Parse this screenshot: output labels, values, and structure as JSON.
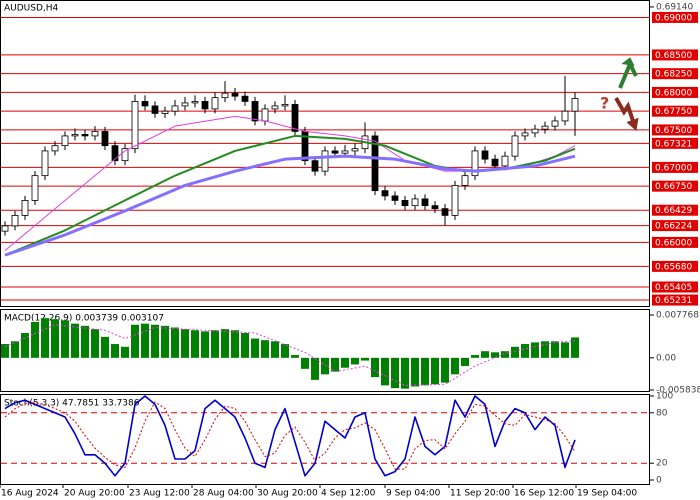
{
  "chart_data": [
    {
      "type": "candlestick",
      "title": "AUDUSD,H4",
      "xlim": [
        -0.5,
        64.5
      ],
      "ylim": [
        0.65165,
        0.69206
      ],
      "yticks": [
        {
          "value": 0.6914,
          "label": "0.69140"
        }
      ],
      "xticks": [
        {
          "value": -0.5,
          "label": "16 Aug 2024"
        },
        {
          "value": 5.8,
          "label": "20 Aug 20:00"
        },
        {
          "value": 12.3,
          "label": "23 Aug 12:00"
        },
        {
          "value": 18.7,
          "label": "28 Aug 04:00"
        },
        {
          "value": 25.1,
          "label": "30 Aug 20:00"
        },
        {
          "value": 31.5,
          "label": "4 Sep 12:00"
        },
        {
          "value": 38,
          "label": "9 Sep 04:00"
        },
        {
          "value": 44.4,
          "label": "11 Sep 20:00"
        },
        {
          "value": 50.8,
          "label": "16 Sep 12:00"
        },
        {
          "value": 57.1,
          "label": "19 Sep 04:00"
        }
      ],
      "levels": [
        {
          "value": 0.69,
          "label": "0.69000"
        },
        {
          "value": 0.685,
          "label": "0.68500"
        },
        {
          "value": 0.6825,
          "label": "0.68250"
        },
        {
          "value": 0.68,
          "label": "0.68000"
        },
        {
          "value": 0.6775,
          "label": "0.67750"
        },
        {
          "value": 0.675,
          "label": "0.67500"
        },
        {
          "value": 0.67321,
          "label": "0.67321"
        },
        {
          "value": 0.67,
          "label": "0.67000"
        },
        {
          "value": 0.6675,
          "label": "0.66750"
        },
        {
          "value": 0.66429,
          "label": "0.66429"
        },
        {
          "value": 0.66224,
          "label": "0.66224"
        },
        {
          "value": 0.66,
          "label": "0.66000"
        },
        {
          "value": 0.6568,
          "label": "0.65680"
        },
        {
          "value": 0.65405,
          "label": "0.65405"
        },
        {
          "value": 0.65231,
          "label": "0.65231"
        }
      ],
      "level_color": "#e00000",
      "annotation": "?",
      "open": [
        0.6615,
        0.6622,
        0.6636,
        0.6656,
        0.6689,
        0.6722,
        0.6729,
        0.6742,
        0.6744,
        0.6742,
        0.6748,
        0.6729,
        0.6709,
        0.6725,
        0.6788,
        0.6782,
        0.6772,
        0.6775,
        0.6782,
        0.6786,
        0.6788,
        0.6778,
        0.6793,
        0.6799,
        0.6795,
        0.6788,
        0.6762,
        0.6778,
        0.6782,
        0.6784,
        0.6748,
        0.6709,
        0.6695,
        0.6722,
        0.6719,
        0.6722,
        0.6725,
        0.6742,
        0.6669,
        0.6662,
        0.6656,
        0.6649,
        0.6658,
        0.6649,
        0.6645,
        0.6636,
        0.6676,
        0.6689,
        0.6722,
        0.6711,
        0.6702,
        0.6715,
        0.6742,
        0.6746,
        0.6751,
        0.6755,
        0.6762,
        0.6775
      ],
      "high": [
        0.6628,
        0.6642,
        0.6662,
        0.6695,
        0.6728,
        0.6735,
        0.6748,
        0.6752,
        0.675,
        0.6755,
        0.6754,
        0.6735,
        0.6731,
        0.6797,
        0.6796,
        0.6788,
        0.6781,
        0.679,
        0.6794,
        0.6796,
        0.6794,
        0.68,
        0.6815,
        0.6806,
        0.6801,
        0.6794,
        0.6784,
        0.6788,
        0.6796,
        0.679,
        0.6754,
        0.6715,
        0.6728,
        0.6728,
        0.673,
        0.6732,
        0.676,
        0.6748,
        0.6675,
        0.6668,
        0.6662,
        0.6664,
        0.6664,
        0.6655,
        0.6651,
        0.6682,
        0.6695,
        0.6728,
        0.6728,
        0.6717,
        0.6721,
        0.6748,
        0.6752,
        0.6757,
        0.6761,
        0.6768,
        0.6822,
        0.68
      ],
      "low": [
        0.6609,
        0.6616,
        0.663,
        0.665,
        0.6683,
        0.6716,
        0.6723,
        0.6736,
        0.6736,
        0.6736,
        0.6723,
        0.6703,
        0.6703,
        0.6719,
        0.6776,
        0.6766,
        0.6766,
        0.6769,
        0.6776,
        0.678,
        0.6772,
        0.6772,
        0.6787,
        0.6789,
        0.6782,
        0.6756,
        0.6756,
        0.6772,
        0.6776,
        0.6742,
        0.6703,
        0.6689,
        0.6689,
        0.6713,
        0.6713,
        0.6716,
        0.6719,
        0.6663,
        0.6656,
        0.665,
        0.6643,
        0.6643,
        0.6643,
        0.6639,
        0.6622,
        0.663,
        0.667,
        0.6683,
        0.6705,
        0.6696,
        0.6696,
        0.6709,
        0.6736,
        0.674,
        0.6745,
        0.6749,
        0.6756,
        0.6742
      ],
      "close": [
        0.6622,
        0.6636,
        0.6656,
        0.6689,
        0.6722,
        0.6729,
        0.6742,
        0.6744,
        0.6742,
        0.6748,
        0.6729,
        0.6709,
        0.6725,
        0.6788,
        0.6782,
        0.6772,
        0.6775,
        0.6782,
        0.6786,
        0.6788,
        0.6778,
        0.6793,
        0.6799,
        0.6795,
        0.6788,
        0.6762,
        0.6778,
        0.6782,
        0.6784,
        0.6748,
        0.6709,
        0.6695,
        0.6722,
        0.6719,
        0.6722,
        0.6725,
        0.6742,
        0.6669,
        0.6662,
        0.6656,
        0.6649,
        0.6658,
        0.6649,
        0.6645,
        0.6636,
        0.6676,
        0.6689,
        0.6722,
        0.6711,
        0.6702,
        0.6715,
        0.6742,
        0.6746,
        0.6751,
        0.6755,
        0.6762,
        0.6775,
        0.6792
      ],
      "up_color": "#ffffff",
      "down_color": "#000000",
      "overlays": [
        {
          "color": "#e040e0",
          "width": 1,
          "x": [
            0,
            6,
            12,
            17,
            23,
            26,
            30,
            34,
            37,
            40,
            44,
            48,
            52,
            55,
            57
          ],
          "values": [
            0.6589,
            0.6656,
            0.6722,
            0.6755,
            0.6768,
            0.6762,
            0.6748,
            0.6742,
            0.6735,
            0.6709,
            0.6695,
            0.6695,
            0.6702,
            0.6715,
            0.6729
          ]
        },
        {
          "color": "#228b22",
          "width": 2,
          "x": [
            0,
            6,
            12,
            17,
            23,
            29,
            34,
            38,
            43,
            46,
            50,
            54,
            57
          ],
          "values": [
            0.6583,
            0.6616,
            0.6656,
            0.6689,
            0.6722,
            0.6742,
            0.6738,
            0.6729,
            0.6702,
            0.6695,
            0.6698,
            0.6709,
            0.6725
          ]
        },
        {
          "color": "#8470ff",
          "width": 3,
          "x": [
            0,
            6,
            12,
            18,
            23,
            28,
            34,
            39,
            44,
            47,
            53,
            57
          ],
          "values": [
            0.6583,
            0.661,
            0.6642,
            0.6676,
            0.6695,
            0.6711,
            0.6715,
            0.6711,
            0.6698,
            0.6695,
            0.6702,
            0.6715
          ]
        }
      ]
    },
    {
      "type": "bar",
      "title": "MACD(12,26,9) 0.003739 0.003107",
      "ylim": [
        -0.005838,
        0.007768
      ],
      "yticks": [
        0.007768,
        {
          "value": 0,
          "label": "0.00"
        },
        -0.005838
      ],
      "color": "#008000",
      "values": [
        0.0025,
        0.003,
        0.0045,
        0.0065,
        0.0072,
        0.007,
        0.0068,
        0.0062,
        0.0058,
        0.0052,
        0.0038,
        0.0025,
        0.002,
        0.006,
        0.0062,
        0.006,
        0.0058,
        0.0055,
        0.0052,
        0.005,
        0.0048,
        0.005,
        0.0052,
        0.005,
        0.0045,
        0.0035,
        0.0032,
        0.003,
        0.0025,
        0.0005,
        -0.002,
        -0.004,
        -0.003,
        -0.0025,
        -0.0018,
        -0.0012,
        -0.0005,
        -0.0035,
        -0.005,
        -0.0055,
        -0.0056,
        -0.0052,
        -0.005,
        -0.0048,
        -0.0045,
        -0.003,
        -0.0015,
        0.0005,
        0.0012,
        0.001,
        0.0012,
        0.002,
        0.0025,
        0.0028,
        0.003,
        0.003,
        0.0028,
        0.0037
      ],
      "overlays": [
        {
          "color": "#e040e0",
          "width": 1,
          "style": "dotted",
          "x": [
            0,
            5,
            10,
            12,
            15,
            25,
            30,
            33,
            36,
            40,
            44,
            47,
            50,
            55,
            57
          ],
          "values": [
            0.002,
            0.006,
            0.005,
            0.0035,
            0.0055,
            0.0045,
            0.001,
            -0.0025,
            -0.0015,
            -0.005,
            -0.0048,
            -0.0015,
            0.0008,
            0.0028,
            0.0031
          ]
        }
      ]
    },
    {
      "type": "line",
      "title": "Stoch(5,3,3) 47.7851 33.7386",
      "ylim": [
        0,
        100
      ],
      "yticks": [
        100,
        80,
        20,
        0
      ],
      "levels": [
        80,
        20
      ],
      "level_color": "#e00000",
      "series": [
        {
          "color": "#0000cc",
          "width": 1.6,
          "values": [
            85,
            92,
            95,
            90,
            85,
            80,
            75,
            55,
            30,
            30,
            20,
            5,
            20,
            90,
            100,
            90,
            65,
            25,
            25,
            35,
            85,
            95,
            85,
            75,
            50,
            20,
            15,
            60,
            85,
            45,
            5,
            20,
            70,
            60,
            50,
            75,
            80,
            25,
            5,
            10,
            25,
            75,
            40,
            30,
            40,
            95,
            75,
            100,
            90,
            40,
            70,
            85,
            80,
            60,
            75,
            65,
            15,
            47.7851
          ]
        },
        {
          "color": "#e00000",
          "width": 1,
          "style": "dotted",
          "values": [
            75,
            85,
            91,
            92,
            90,
            85,
            80,
            70,
            53,
            38,
            27,
            18,
            15,
            38,
            70,
            93,
            85,
            60,
            38,
            28,
            48,
            72,
            88,
            85,
            70,
            48,
            28,
            32,
            53,
            63,
            45,
            23,
            32,
            50,
            60,
            62,
            68,
            60,
            37,
            13,
            13,
            37,
            47,
            48,
            37,
            55,
            70,
            90,
            88,
            77,
            67,
            65,
            78,
            75,
            72,
            67,
            52,
            33.7386
          ]
        }
      ]
    }
  ]
}
